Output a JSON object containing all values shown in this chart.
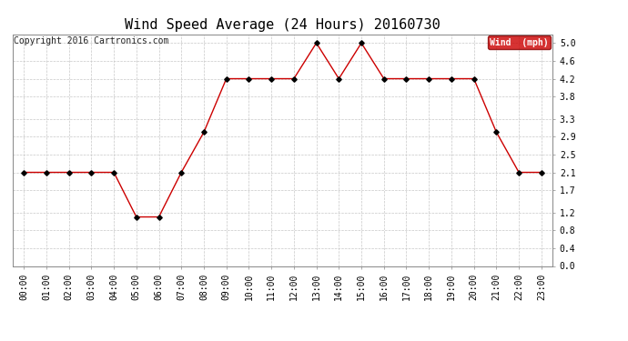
{
  "title": "Wind Speed Average (24 Hours) 20160730",
  "copyright": "Copyright 2016 Cartronics.com",
  "legend_label": "Wind  (mph)",
  "x_labels": [
    "00:00",
    "01:00",
    "02:00",
    "03:00",
    "04:00",
    "05:00",
    "06:00",
    "07:00",
    "08:00",
    "09:00",
    "10:00",
    "11:00",
    "12:00",
    "13:00",
    "14:00",
    "15:00",
    "16:00",
    "17:00",
    "18:00",
    "19:00",
    "20:00",
    "21:00",
    "22:00",
    "23:00"
  ],
  "y_values": [
    2.1,
    2.1,
    2.1,
    2.1,
    2.1,
    1.1,
    1.1,
    2.1,
    3.0,
    4.2,
    4.2,
    4.2,
    4.2,
    5.0,
    4.2,
    5.0,
    4.2,
    4.2,
    4.2,
    4.2,
    4.2,
    3.0,
    2.1,
    2.1
  ],
  "line_color": "#cc0000",
  "marker_color": "#000000",
  "background_color": "#ffffff",
  "grid_color": "#c8c8c8",
  "ylim": [
    0.0,
    5.2
  ],
  "yticks": [
    0.0,
    0.4,
    0.8,
    1.2,
    1.7,
    2.1,
    2.5,
    2.9,
    3.3,
    3.8,
    4.2,
    4.6,
    5.0
  ],
  "title_fontsize": 11,
  "tick_fontsize": 7,
  "copyright_fontsize": 7,
  "legend_bg": "#cc0000",
  "legend_text_color": "#ffffff",
  "figwidth": 6.9,
  "figheight": 3.75,
  "dpi": 100
}
